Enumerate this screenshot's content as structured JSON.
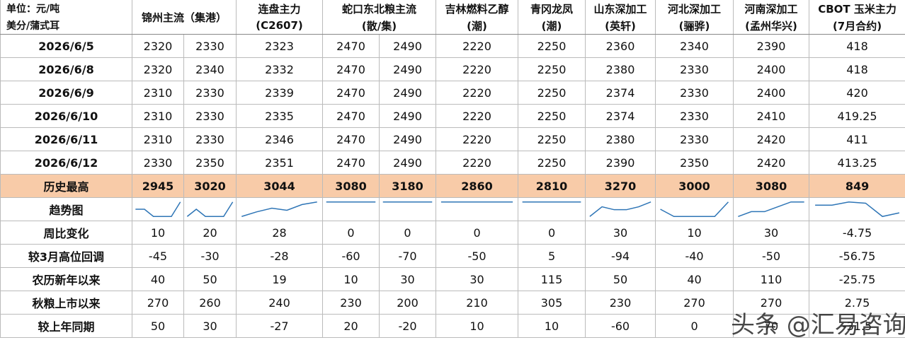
{
  "header": {
    "unit": [
      "单位：元/吨",
      "美分/蒲式耳"
    ],
    "columns": [
      [
        "锦州主流（集港）"
      ],
      [
        "连盘主力",
        "(C2607)"
      ],
      [
        "蛇口东北粮主流",
        "(散/集)"
      ],
      [
        "吉林燃料乙醇",
        "(潮)"
      ],
      [
        "青冈龙凤",
        "(潮)"
      ],
      [
        "山东深加工",
        "(英轩)"
      ],
      [
        "河北深加工",
        "(骊骅)"
      ],
      [
        "河南深加工",
        "(孟州华兴)"
      ],
      [
        "CBOT 玉米主力",
        "(7月合约)"
      ]
    ]
  },
  "rows": [
    {
      "label": "2026/6/5",
      "cells": [
        2320,
        2330,
        2323,
        2470,
        2490,
        2220,
        2250,
        2360,
        2340,
        2390,
        418
      ]
    },
    {
      "label": "2026/6/8",
      "cells": [
        2320,
        2340,
        2332,
        2470,
        2490,
        2220,
        2250,
        2380,
        2330,
        2400,
        418
      ]
    },
    {
      "label": "2026/6/9",
      "cells": [
        2310,
        2330,
        2339,
        2470,
        2490,
        2220,
        2250,
        2374,
        2330,
        2400,
        420
      ]
    },
    {
      "label": "2026/6/10",
      "cells": [
        2310,
        2330,
        2335,
        2470,
        2490,
        2220,
        2250,
        2374,
        2330,
        2410,
        419.25
      ]
    },
    {
      "label": "2026/6/11",
      "cells": [
        2310,
        2330,
        2346,
        2470,
        2490,
        2220,
        2250,
        2380,
        2330,
        2420,
        411
      ]
    },
    {
      "label": "2026/6/12",
      "cells": [
        2330,
        2350,
        2351,
        2470,
        2490,
        2220,
        2250,
        2390,
        2350,
        2420,
        413.25
      ]
    },
    {
      "label": "历史最高",
      "cells": [
        2945,
        3020,
        3044,
        3080,
        3180,
        2860,
        2810,
        3270,
        3000,
        3080,
        849
      ]
    },
    {
      "label": "趋势图",
      "cells": []
    },
    {
      "label": "周比变化",
      "cells": [
        10,
        20,
        28,
        0,
        0,
        0,
        0,
        30,
        10,
        30,
        -4.75
      ]
    },
    {
      "label": "较3月高位回调",
      "cells": [
        -45,
        -30,
        -28,
        -60,
        -70,
        -50,
        5,
        -94,
        -40,
        -50,
        -56.75
      ]
    },
    {
      "label": "农历新年以来",
      "cells": [
        40,
        50,
        19,
        10,
        30,
        30,
        115,
        50,
        40,
        110,
        -25.75
      ]
    },
    {
      "label": "秋粮上市以来",
      "cells": [
        270,
        260,
        240,
        230,
        200,
        210,
        305,
        230,
        270,
        270,
        2.75
      ]
    },
    {
      "label": "较上年同期",
      "cells": [
        50,
        30,
        -27,
        20,
        -20,
        10,
        10,
        -60,
        0,
        70,
        -31.5
      ]
    }
  ],
  "watermark": "头条 @汇易咨询"
}
